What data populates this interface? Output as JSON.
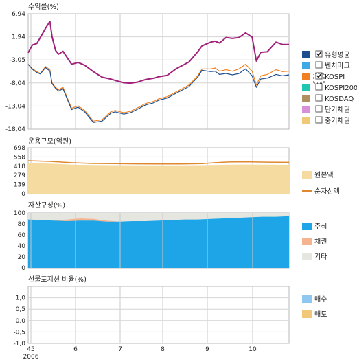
{
  "chart_data": [
    {
      "id": "returns",
      "type": "line",
      "title": "수익률(%)",
      "ylim": [
        -18.04,
        6.94
      ],
      "yticks": [
        "6,94",
        "1,94",
        "-3,05",
        "-8,04",
        "-13,04",
        "-18,04"
      ],
      "legend_position": "right",
      "legend": [
        {
          "label": "유형평균",
          "color": "#1f4e8c",
          "checked": true
        },
        {
          "label": "벤치마크",
          "color": "#3fa9e6",
          "checked": false
        },
        {
          "label": "KOSPI",
          "color": "#f08020",
          "checked": true
        },
        {
          "label": "KOSPI200",
          "color": "#1ec8b0",
          "checked": false
        },
        {
          "label": "KOSDAQ",
          "color": "#b09060",
          "checked": false
        },
        {
          "label": "단기채권",
          "color": "#d890d8",
          "checked": false
        },
        {
          "label": "중기채권",
          "color": "#f0c878",
          "checked": false
        }
      ],
      "x": [
        0,
        0.1,
        0.2,
        0.28,
        0.4,
        0.5,
        0.55,
        0.63,
        0.7,
        0.8,
        1.0,
        1.15,
        1.3,
        1.5,
        1.7,
        1.9,
        2.0,
        2.2,
        2.35,
        2.5,
        2.7,
        2.9,
        3.0,
        3.2,
        3.4,
        3.5,
        3.7,
        3.9,
        4.0,
        4.2,
        4.3,
        4.4,
        4.55,
        4.7,
        4.85,
        5.0,
        5.15,
        5.25,
        5.35,
        5.5,
        5.7,
        5.85,
        6.0
      ],
      "series": [
        {
          "color": "#a0207a",
          "values": [
            -1.5,
            0.2,
            0.5,
            1.8,
            3.8,
            5.3,
            2.0,
            -1.0,
            -1.8,
            -1.2,
            -4.0,
            -3.6,
            -4.2,
            -5.6,
            -6.8,
            -7.2,
            -7.5,
            -8.0,
            -8.1,
            -7.9,
            -7.3,
            -7.0,
            -6.7,
            -6.4,
            -5.0,
            -4.5,
            -3.5,
            -1.3,
            0.0,
            0.8,
            1.0,
            0.6,
            1.8,
            1.6,
            1.8,
            2.8,
            1.9,
            -3.3,
            -1.4,
            -1.3,
            0.8,
            0.3,
            0.3
          ]
        },
        {
          "color": "#f08020",
          "values": [
            -4.0,
            -5.0,
            -5.6,
            -6.0,
            -4.5,
            -5.2,
            -8.0,
            -9.0,
            -9.5,
            -9.0,
            -13.5,
            -13.0,
            -14.0,
            -16.3,
            -16.0,
            -14.3,
            -14.0,
            -14.5,
            -14.2,
            -13.5,
            -12.5,
            -12.0,
            -11.5,
            -11.0,
            -10.0,
            -9.5,
            -8.5,
            -6.5,
            -5.0,
            -5.0,
            -4.8,
            -5.5,
            -5.2,
            -5.5,
            -5.0,
            -4.0,
            -5.5,
            -8.5,
            -6.5,
            -6.2,
            -5.2,
            -5.6,
            -5.5
          ]
        },
        {
          "color": "#1f4e8c",
          "values": [
            -4.0,
            -5.1,
            -5.8,
            -6.1,
            -4.7,
            -5.5,
            -8.2,
            -9.2,
            -9.8,
            -9.3,
            -13.8,
            -13.3,
            -14.3,
            -16.6,
            -16.3,
            -14.6,
            -14.3,
            -14.8,
            -14.5,
            -13.8,
            -12.8,
            -12.3,
            -11.8,
            -11.3,
            -10.3,
            -9.8,
            -8.8,
            -6.8,
            -5.3,
            -5.6,
            -5.5,
            -6.2,
            -6.0,
            -6.3,
            -6.0,
            -5.0,
            -6.5,
            -9.0,
            -7.2,
            -7.0,
            -6.2,
            -6.5,
            -6.3
          ]
        }
      ]
    },
    {
      "id": "aum",
      "type": "area",
      "title": "운용규모(억원)",
      "ylim": [
        0,
        698
      ],
      "yticks": [
        "698",
        "558",
        "418",
        "279",
        "139",
        "0"
      ],
      "legend": [
        {
          "label": "원본액",
          "color": "#f5dba0",
          "kind": "box"
        },
        {
          "label": "순자산액",
          "color": "#e08830",
          "kind": "line"
        }
      ],
      "x": [
        0,
        0.5,
        1.0,
        1.5,
        2.0,
        2.5,
        3.0,
        3.5,
        4.0,
        4.3,
        4.6,
        5.0,
        5.5,
        6.0
      ],
      "series": [
        {
          "name": "원본액",
          "color": "#f5dba0",
          "values": [
            465,
            455,
            440,
            435,
            432,
            430,
            430,
            430,
            432,
            437,
            440,
            442,
            440,
            438
          ]
        },
        {
          "name": "순자산액",
          "color": "#e08830",
          "values": [
            500,
            490,
            470,
            458,
            455,
            452,
            450,
            450,
            455,
            470,
            480,
            483,
            478,
            475
          ]
        }
      ]
    },
    {
      "id": "assets",
      "type": "area",
      "title": "자산구성(%)",
      "ylim": [
        0,
        100
      ],
      "yticks": [
        "100",
        "80",
        "60",
        "40",
        "20",
        "0"
      ],
      "legend": [
        {
          "label": "주식",
          "color": "#1ea5e8"
        },
        {
          "label": "채권",
          "color": "#f5b490"
        },
        {
          "label": "기타",
          "color": "#e6e6e0"
        }
      ],
      "x": [
        0,
        0.3,
        0.6,
        0.9,
        1.2,
        1.5,
        1.8,
        2.1,
        2.4,
        2.7,
        3.0,
        3.3,
        3.6,
        3.9,
        4.2,
        4.5,
        4.8,
        5.1,
        5.4,
        5.7,
        6.0
      ],
      "stocks": [
        88,
        87,
        86,
        85,
        86,
        86,
        84,
        84,
        85,
        85,
        86,
        87,
        88,
        88,
        89,
        90,
        91,
        92,
        93,
        93,
        94
      ],
      "bonds": [
        0,
        0,
        0,
        3,
        4,
        3,
        2,
        0,
        0,
        0,
        0,
        0,
        0,
        0,
        0,
        0,
        0,
        0,
        0,
        0,
        0
      ],
      "other": [
        12,
        13,
        14,
        12,
        10,
        11,
        14,
        16,
        15,
        15,
        14,
        13,
        12,
        12,
        11,
        10,
        9,
        8,
        7,
        7,
        6
      ]
    },
    {
      "id": "futures",
      "type": "bar",
      "title": "선물포지션 비율(%)",
      "ylim": [
        -1.0,
        1.5
      ],
      "yticks": [
        "1,0",
        "0,5",
        "0,0",
        "-0,5",
        "-1,0"
      ],
      "legend": [
        {
          "label": "매수",
          "color": "#8ec8f0"
        },
        {
          "label": "매도",
          "color": "#f0c878"
        }
      ]
    }
  ],
  "x_axis": {
    "ticks": [
      "45",
      "6",
      "7",
      "8",
      "9",
      "10"
    ],
    "year": "2006"
  }
}
